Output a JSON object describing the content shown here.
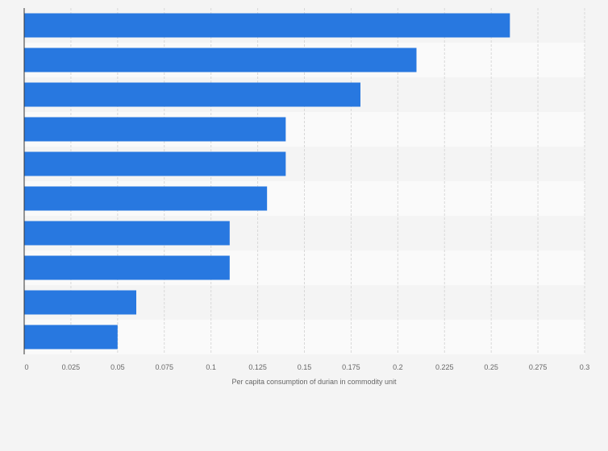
{
  "chart_data": {
    "type": "bar",
    "orientation": "horizontal",
    "categories": [
      "",
      "",
      "",
      "",
      "",
      "",
      "",
      "",
      "",
      ""
    ],
    "values": [
      0.26,
      0.21,
      0.18,
      0.14,
      0.14,
      0.13,
      0.11,
      0.11,
      0.06,
      0.05
    ],
    "title": "",
    "xlabel": "Per capita consumption of durian in commodity unit",
    "ylabel": "",
    "xlim": [
      0,
      0.3
    ],
    "x_ticks": [
      "0",
      "0.025",
      "0.05",
      "0.075",
      "0.1",
      "0.125",
      "0.15",
      "0.175",
      "0.2",
      "0.225",
      "0.25",
      "0.275",
      "0.3"
    ],
    "x_tick_values": [
      0,
      0.025,
      0.05,
      0.075,
      0.1,
      0.125,
      0.15,
      0.175,
      0.2,
      0.225,
      0.25,
      0.275,
      0.3
    ],
    "grid": true,
    "bar_color": "#2878e0",
    "band_colors": [
      "#f4f4f4",
      "#fafafa"
    ]
  }
}
